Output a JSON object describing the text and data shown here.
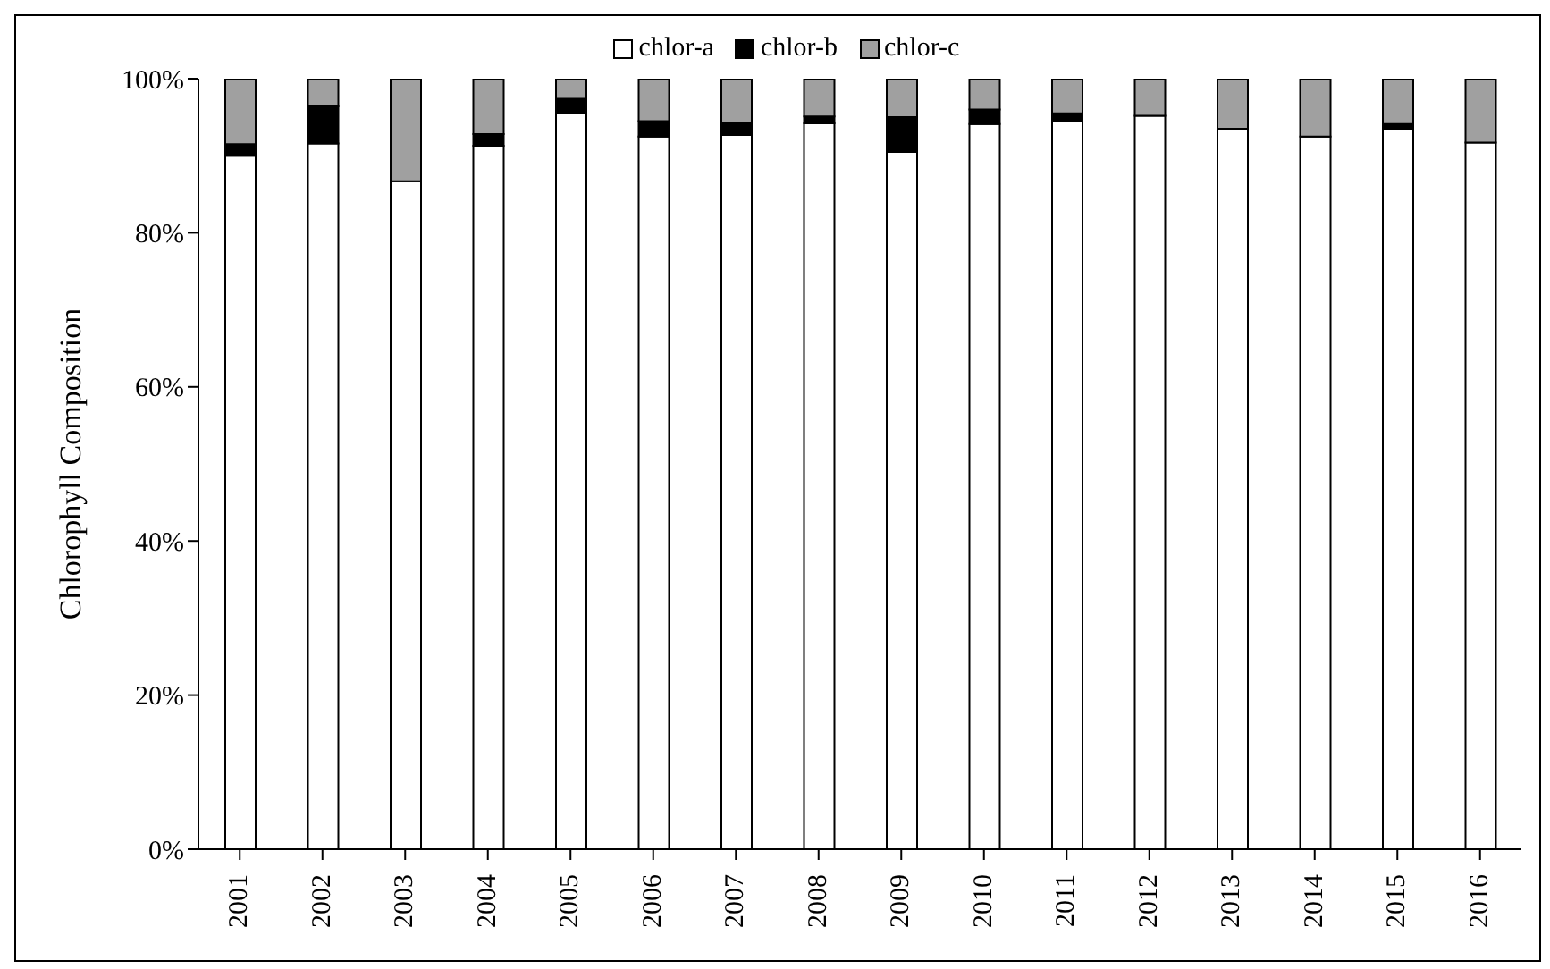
{
  "chart_data": {
    "type": "bar",
    "stacked": true,
    "ylabel": "Chlorophyll Composition",
    "categories": [
      "2001",
      "2002",
      "2003",
      "2004",
      "2005",
      "2006",
      "2007",
      "2008",
      "2009",
      "2010",
      "2011",
      "2012",
      "2013",
      "2014",
      "2015",
      "2016"
    ],
    "series": [
      {
        "name": "chlor-a",
        "color": "#ffffff",
        "values": [
          90.0,
          91.6,
          86.7,
          91.3,
          95.5,
          92.5,
          92.7,
          94.2,
          90.5,
          94.1,
          94.5,
          95.2,
          93.5,
          92.5,
          93.5,
          91.7
        ]
      },
      {
        "name": "chlor-b",
        "color": "#000000",
        "values": [
          1.5,
          4.8,
          0,
          1.5,
          1.9,
          2.0,
          1.6,
          0.9,
          4.5,
          1.9,
          1.0,
          0,
          0,
          0,
          0.6,
          0
        ]
      },
      {
        "name": "chlor-c",
        "color": "#a0a0a0",
        "values": [
          8.5,
          3.6,
          13.3,
          7.2,
          2.6,
          5.5,
          5.7,
          4.9,
          5.0,
          4.0,
          4.5,
          4.8,
          6.5,
          7.5,
          5.9,
          8.3
        ]
      }
    ],
    "ylim": [
      0,
      100
    ],
    "yticks": [
      {
        "value": 0,
        "label": "0%"
      },
      {
        "value": 20,
        "label": "20%"
      },
      {
        "value": 40,
        "label": "40%"
      },
      {
        "value": 60,
        "label": "60%"
      },
      {
        "value": 80,
        "label": "80%"
      },
      {
        "value": 100,
        "label": "100%"
      }
    ],
    "grid": false,
    "legend": "top"
  }
}
